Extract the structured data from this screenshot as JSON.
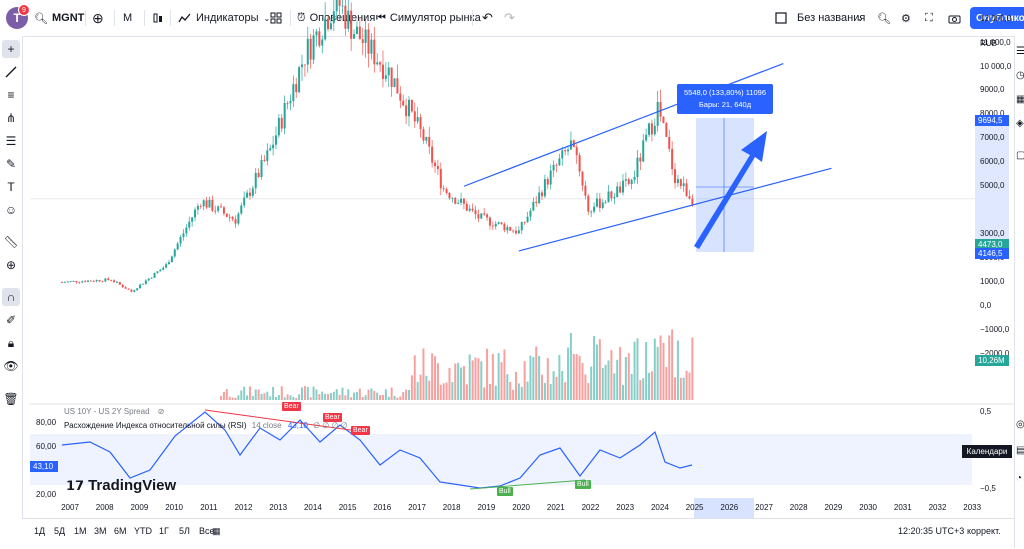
{
  "header": {
    "avatar_letter": "T",
    "notification_count": "9",
    "symbol": "MGNT",
    "interval": "M",
    "indicators_label": "Индикаторы",
    "alerts_label": "Оповещения",
    "replay_label": "Симулятор рынка",
    "layout_name": "Без названия",
    "publish_label": "Опубликова"
  },
  "right_toolbar": {
    "calendar_label": "Календари"
  },
  "price_axis": {
    "currency": "RUB",
    "labels": [
      "12 000,0",
      "11 000,0",
      "10 000,0",
      "9000,0",
      "8000,0",
      "7000,0",
      "6000,0",
      "5000,0",
      "3000,0",
      "2000,0",
      "1000,0",
      "0,0",
      "−1000,0",
      "−2000,0"
    ],
    "current_price": "4473,0",
    "price_2": "4146,5",
    "measure_top": "9694,5",
    "volume_tag": "10,26M"
  },
  "measure_tooltip": {
    "line1": "5548,0 (133,80%) 11096",
    "line2": "Бары: 21, 640д"
  },
  "indicators": {
    "spread_label": "US 10Y - US 2Y Spread",
    "rsi_label": "Расхождение Индекса относительной силы (RSI)",
    "rsi_params": "14 close",
    "rsi_value": "43,10",
    "rsi_extra": "∅ ∅ ∅ ∅",
    "rsi_axis": [
      "80,00",
      "60,00",
      "43,10",
      "20,00"
    ],
    "spread_axis": [
      "0,5",
      "−0,5"
    ],
    "bear": "Bear",
    "bull": "Bull"
  },
  "watermark": "TradingView",
  "time_axis": {
    "years": [
      "2007",
      "2008",
      "2009",
      "2010",
      "2011",
      "2012",
      "2013",
      "2014",
      "2015",
      "2016",
      "2017",
      "2018",
      "2019",
      "2020",
      "2021",
      "2022",
      "2023",
      "2024",
      "2025",
      "2026",
      "2027",
      "2028",
      "2029",
      "2030",
      "2031",
      "2032",
      "2033"
    ]
  },
  "bottom_bar": {
    "ranges": [
      "1Д",
      "5Д",
      "1М",
      "3М",
      "6М",
      "YTD",
      "1Г",
      "5Л",
      "Все"
    ],
    "clock": "12:20:35 UTC+3",
    "adjust_label": "коррект."
  },
  "colors": {
    "up": "#26a69a",
    "down": "#ef5350",
    "accent": "#2962ff",
    "bear": "#f23645",
    "bull": "#4caf50",
    "rsi": "#2962ff"
  },
  "chart_data": {
    "type": "candlestick",
    "symbol": "MGNT",
    "close_approx": [
      {
        "date": "2007-01",
        "close": 1000
      },
      {
        "date": "2008-06",
        "close": 1100
      },
      {
        "date": "2009-01",
        "close": 600
      },
      {
        "date": "2010-01",
        "close": 1700
      },
      {
        "date": "2011-01",
        "close": 4400
      },
      {
        "date": "2012-01",
        "close": 3600
      },
      {
        "date": "2013-01",
        "close": 6500
      },
      {
        "date": "2014-01",
        "close": 10500
      },
      {
        "date": "2014-12",
        "close": 12800
      },
      {
        "date": "2015-06",
        "close": 11500
      },
      {
        "date": "2016-06",
        "close": 9800
      },
      {
        "date": "2017-06",
        "close": 7000
      },
      {
        "date": "2018-01",
        "close": 4900
      },
      {
        "date": "2019-01",
        "close": 3700
      },
      {
        "date": "2020-03",
        "close": 3100
      },
      {
        "date": "2021-01",
        "close": 5300
      },
      {
        "date": "2021-10",
        "close": 6900
      },
      {
        "date": "2022-03",
        "close": 4000
      },
      {
        "date": "2023-06",
        "close": 5200
      },
      {
        "date": "2024-03",
        "close": 8300
      },
      {
        "date": "2024-09",
        "close": 5400
      },
      {
        "date": "2025-03",
        "close": 4473
      }
    ],
    "ylim": [
      -2000,
      13000
    ],
    "y_tick_values": [
      -2000,
      -1000,
      0,
      1000,
      2000,
      3000,
      4000,
      5000,
      6000,
      7000,
      8000,
      9000,
      10000,
      11000,
      12000
    ],
    "channel": {
      "upper": [
        {
          "date": "2018-08",
          "price": 5000
        },
        {
          "date": "2026-01",
          "price": 10500
        }
      ],
      "lower": [
        {
          "date": "2020-03",
          "price": 2300
        },
        {
          "date": "2027-06",
          "price": 6000
        }
      ]
    },
    "rsi": {
      "current": 43.1,
      "upper_band": 70,
      "lower_band": 30
    }
  }
}
